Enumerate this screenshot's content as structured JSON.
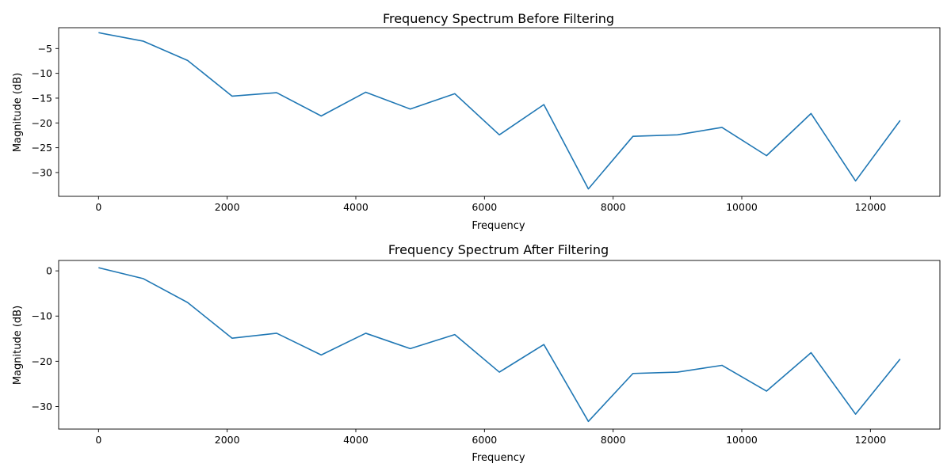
{
  "chart_data": [
    {
      "type": "line",
      "title": "Frequency Spectrum Before Filtering",
      "xlabel": "Frequency",
      "ylabel": "Magnitude (dB)",
      "xlim": [
        -620,
        13080
      ],
      "ylim": [
        -34.8,
        -0.8
      ],
      "xticks": [
        0,
        2000,
        4000,
        6000,
        8000,
        10000,
        12000
      ],
      "yticks": [
        -5,
        -10,
        -15,
        -20,
        -25,
        -30
      ],
      "grid": false,
      "color": "#1f77b4",
      "x": [
        0,
        692,
        1385,
        2077,
        2769,
        3462,
        4154,
        4846,
        5538,
        6231,
        6923,
        7615,
        8308,
        9000,
        9692,
        10385,
        11077,
        11769,
        12462
      ],
      "y": [
        -1.8,
        -3.5,
        -7.4,
        -14.6,
        -13.9,
        -18.6,
        -13.8,
        -17.2,
        -14.1,
        -22.4,
        -16.3,
        -33.3,
        -22.7,
        -22.4,
        -20.9,
        -26.6,
        -18.1,
        -31.7,
        -19.5
      ]
    },
    {
      "type": "line",
      "title": "Frequency Spectrum After Filtering",
      "xlabel": "Frequency",
      "ylabel": "Magnitude (dB)",
      "xlim": [
        -620,
        13080
      ],
      "ylim": [
        -35,
        2.3
      ],
      "xticks": [
        0,
        2000,
        4000,
        6000,
        8000,
        10000,
        12000
      ],
      "yticks": [
        0,
        -10,
        -20,
        -30
      ],
      "grid": false,
      "color": "#1f77b4",
      "x": [
        0,
        692,
        1385,
        2077,
        2769,
        3462,
        4154,
        4846,
        5538,
        6231,
        6923,
        7615,
        8308,
        9000,
        9692,
        10385,
        11077,
        11769,
        12462
      ],
      "y": [
        0.7,
        -1.7,
        -7.0,
        -14.9,
        -13.8,
        -18.6,
        -13.8,
        -17.2,
        -14.1,
        -22.4,
        -16.3,
        -33.3,
        -22.7,
        -22.4,
        -20.9,
        -26.6,
        -18.1,
        -31.7,
        -19.5
      ]
    }
  ]
}
